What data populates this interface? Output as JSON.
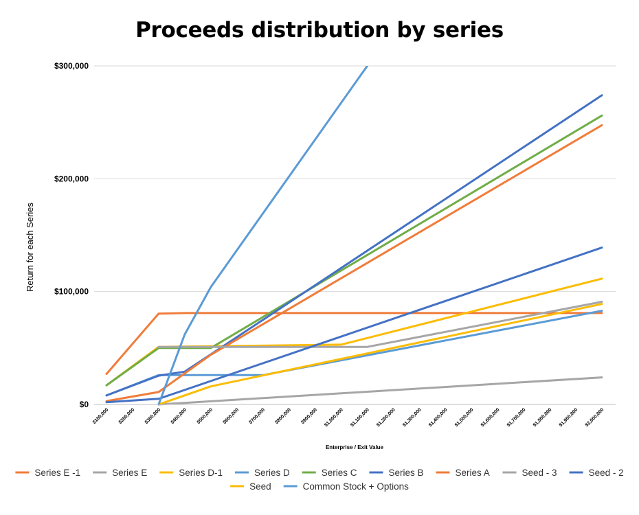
{
  "chart_data": {
    "type": "line",
    "title": "Proceeds distribution by series",
    "xlabel": "Enterprise / Exit Value",
    "ylabel": "Return for each Series",
    "ylim": [
      0,
      300000
    ],
    "y_ticks": [
      "$0",
      "$100,000",
      "$200,000",
      "$300,000"
    ],
    "y_tick_values": [
      0,
      100000,
      200000,
      300000
    ],
    "grid": "horizontal",
    "legend_position": "bottom",
    "x_values": [
      100000,
      200000,
      300000,
      400000,
      500000,
      600000,
      700000,
      800000,
      900000,
      1000000,
      1100000,
      1200000,
      1300000,
      1400000,
      1500000,
      1600000,
      1700000,
      1800000,
      1900000,
      2000000
    ],
    "categories": [
      "$100,000",
      "$200,000",
      "$300,000",
      "$400,000",
      "$500,000",
      "$600,000",
      "$700,000",
      "$800,000",
      "$900,000",
      "$1,000,000",
      "$1,100,000",
      "$1,200,000",
      "$1,300,000",
      "$1,400,000",
      "$1,500,000",
      "$1,600,000",
      "$1,700,000",
      "$1,800,000",
      "$1,900,000",
      "$2,000,000"
    ],
    "series": [
      {
        "name": "Series E -1",
        "color": "#f07c3a",
        "points": [
          [
            100000,
            27000
          ],
          [
            300000,
            80500
          ],
          [
            400000,
            81000
          ],
          [
            2000000,
            81000
          ]
        ]
      },
      {
        "name": "Series E",
        "color": "#a6a6a6",
        "points": [
          [
            300000,
            0
          ],
          [
            2000000,
            24000
          ]
        ]
      },
      {
        "name": "Series D-1",
        "color": "#fbbc04",
        "points": [
          [
            100000,
            17000
          ],
          [
            300000,
            51000
          ],
          [
            1000000,
            53000
          ],
          [
            2000000,
            111500
          ]
        ]
      },
      {
        "name": "Series D",
        "color": "#5b9bd5",
        "points": [
          [
            100000,
            8000
          ],
          [
            300000,
            26000
          ],
          [
            700000,
            26000
          ],
          [
            2000000,
            83000
          ]
        ]
      },
      {
        "name": "Series C",
        "color": "#70ad47",
        "points": [
          [
            100000,
            17000
          ],
          [
            300000,
            50000
          ],
          [
            500000,
            50000
          ],
          [
            2000000,
            256000
          ]
        ]
      },
      {
        "name": "Series B",
        "color": "#4472c4",
        "points": [
          [
            100000,
            8000
          ],
          [
            300000,
            25500
          ],
          [
            400000,
            29000
          ],
          [
            2000000,
            274000
          ]
        ]
      },
      {
        "name": "Series A",
        "color": "#f07c3a",
        "points": [
          [
            100000,
            3000
          ],
          [
            300000,
            11000
          ],
          [
            500000,
            44000
          ],
          [
            2000000,
            247500
          ]
        ]
      },
      {
        "name": "Seed - 3",
        "color": "#a6a6a6",
        "points": [
          [
            300000,
            51000
          ],
          [
            1100000,
            51000
          ],
          [
            2000000,
            91000
          ]
        ]
      },
      {
        "name": "Seed - 2",
        "color": "#4472c4",
        "points": [
          [
            100000,
            2000
          ],
          [
            300000,
            5000
          ],
          [
            2000000,
            139000
          ]
        ]
      },
      {
        "name": "Seed",
        "color": "#fbbc04",
        "points": [
          [
            300000,
            0
          ],
          [
            500000,
            16000
          ],
          [
            2000000,
            89000
          ]
        ]
      },
      {
        "name": "Common Stock + Options",
        "color": "#5b9bd5",
        "points": [
          [
            300000,
            0
          ],
          [
            400000,
            62000
          ],
          [
            500000,
            104000
          ],
          [
            1100000,
            300000
          ]
        ]
      }
    ]
  }
}
